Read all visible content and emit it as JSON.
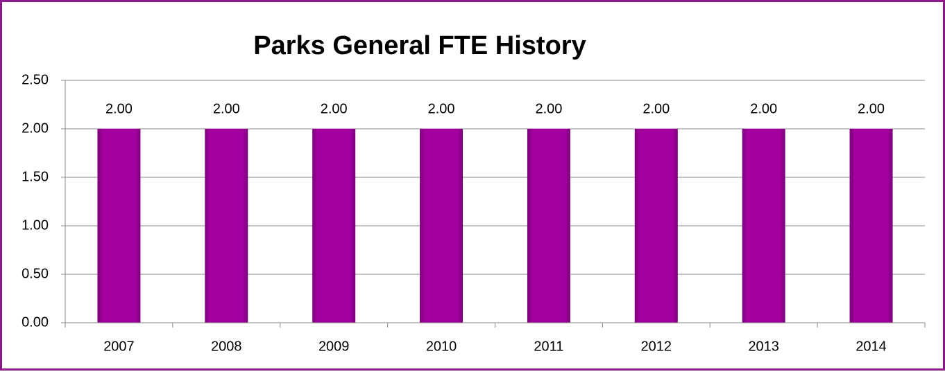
{
  "chart_data": {
    "type": "bar",
    "title": "Parks General FTE History",
    "categories": [
      "2007",
      "2008",
      "2009",
      "2010",
      "2011",
      "2012",
      "2013",
      "2014"
    ],
    "values": [
      2,
      2,
      2,
      2,
      2,
      2,
      2,
      2
    ],
    "value_labels": [
      "2.00",
      "2.00",
      "2.00",
      "2.00",
      "2.00",
      "2.00",
      "2.00",
      "2.00"
    ],
    "color": "#a3009f",
    "ylim": [
      0,
      2.5
    ],
    "yticks": [
      {
        "value": 0,
        "label": "0.00"
      },
      {
        "value": 0.5,
        "label": "0.50"
      },
      {
        "value": 1,
        "label": "1.00"
      },
      {
        "value": 1.5,
        "label": "1.50"
      },
      {
        "value": 2,
        "label": "2.00"
      },
      {
        "value": 2.5,
        "label": "2.50"
      }
    ],
    "grid": true
  }
}
